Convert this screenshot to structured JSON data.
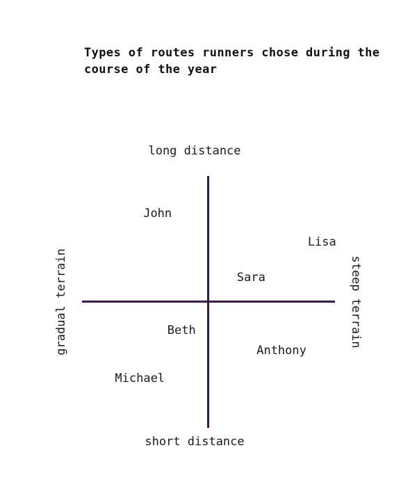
{
  "chart_data": {
    "type": "quadrant",
    "title": "Types of routes runners chose during the course of the year",
    "axes": {
      "top": "long distance",
      "bottom": "short distance",
      "left": "gradual terrain",
      "right": "steep terrain"
    },
    "xlim": [
      -1,
      1
    ],
    "ylim": [
      -1,
      1
    ],
    "points": [
      {
        "label": "John",
        "x": -0.4,
        "y": 0.7
      },
      {
        "label": "Lisa",
        "x": 0.9,
        "y": 0.47
      },
      {
        "label": "Sara",
        "x": 0.34,
        "y": 0.19
      },
      {
        "label": "Beth",
        "x": -0.21,
        "y": -0.23
      },
      {
        "label": "Anthony",
        "x": 0.58,
        "y": -0.39
      },
      {
        "label": "Michael",
        "x": -0.54,
        "y": -0.61
      }
    ]
  },
  "colors": {
    "axis": "#3a1a45",
    "text": "#1a1a1a"
  }
}
